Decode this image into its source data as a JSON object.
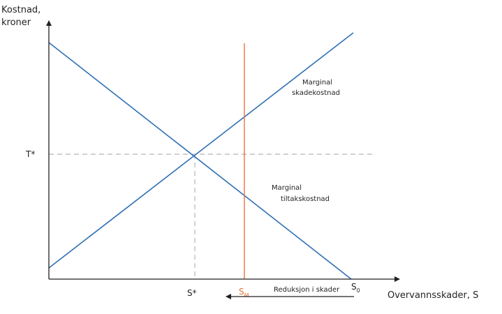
{
  "chart_data": {
    "type": "line",
    "title": "",
    "ylabel_line1": "Kostnad,",
    "ylabel_line2": "kroner",
    "xlabel": "Overvannsskader, S",
    "x_ticks": {
      "s_star": "S*",
      "s_m_base": "S",
      "s_m_sub": "M",
      "s0_base": "S",
      "s0_sub": "0"
    },
    "y_ticks": {
      "t_star": "T*"
    },
    "annotations": {
      "damage_line1": "Marginal",
      "damage_line2": "skadekostnad",
      "measure_line1": "Marginal",
      "measure_line2": "tiltakskostnad",
      "reduction": "Reduksjon i skader"
    },
    "colors": {
      "curves": "#2f6fb5",
      "s_m_line": "#e8733a",
      "axes": "#231f20",
      "guides": "#b5b5b5"
    }
  }
}
